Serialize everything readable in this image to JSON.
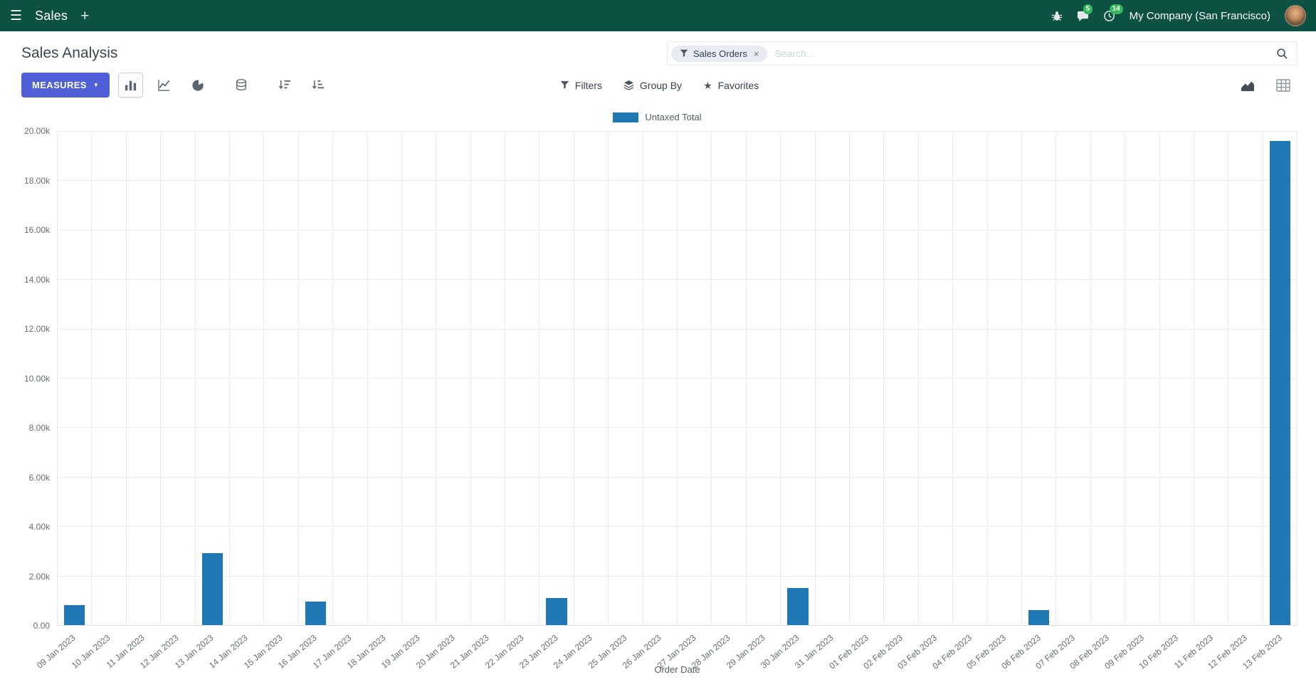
{
  "icons": {
    "menu": "☰",
    "plus": "+",
    "caret_down": "▼",
    "star": "★",
    "close": "×"
  },
  "nav": {
    "app_name": "Sales",
    "chat_badge": "5",
    "activity_badge": "14",
    "company": "My Company (San Francisco)"
  },
  "control_panel": {
    "title": "Sales Analysis",
    "search": {
      "facet": "Sales Orders",
      "placeholder": "Search...",
      "remove_facet": "×"
    }
  },
  "toolbar": {
    "measures_label": "MEASURES",
    "filters_label": "Filters",
    "group_by_label": "Group By",
    "favorites_label": "Favorites"
  },
  "chart_data": {
    "type": "bar",
    "title": "",
    "legend": [
      "Untaxed Total"
    ],
    "legend_position": "top",
    "series_color": "#1f77b4",
    "grid": true,
    "xlabel": "Order Date",
    "ylabel": "",
    "ylim": [
      0,
      20000
    ],
    "y_tick_labels": [
      "0.00",
      "2.00k",
      "4.00k",
      "6.00k",
      "8.00k",
      "10.00k",
      "12.00k",
      "14.00k",
      "16.00k",
      "18.00k",
      "20.00k"
    ],
    "categories": [
      "09 Jan 2023",
      "10 Jan 2023",
      "11 Jan 2023",
      "12 Jan 2023",
      "13 Jan 2023",
      "14 Jan 2023",
      "15 Jan 2023",
      "16 Jan 2023",
      "17 Jan 2023",
      "18 Jan 2023",
      "19 Jan 2023",
      "20 Jan 2023",
      "21 Jan 2023",
      "22 Jan 2023",
      "23 Jan 2023",
      "24 Jan 2023",
      "25 Jan 2023",
      "26 Jan 2023",
      "27 Jan 2023",
      "28 Jan 2023",
      "29 Jan 2023",
      "30 Jan 2023",
      "31 Jan 2023",
      "01 Feb 2023",
      "02 Feb 2023",
      "03 Feb 2023",
      "04 Feb 2023",
      "05 Feb 2023",
      "06 Feb 2023",
      "07 Feb 2023",
      "08 Feb 2023",
      "09 Feb 2023",
      "10 Feb 2023",
      "11 Feb 2023",
      "12 Feb 2023",
      "13 Feb 2023"
    ],
    "values": [
      800,
      0,
      0,
      0,
      2900,
      0,
      0,
      950,
      0,
      0,
      0,
      0,
      0,
      0,
      1100,
      0,
      0,
      0,
      0,
      0,
      0,
      1500,
      0,
      0,
      0,
      0,
      0,
      0,
      600,
      0,
      0,
      0,
      0,
      0,
      0,
      19600
    ]
  }
}
